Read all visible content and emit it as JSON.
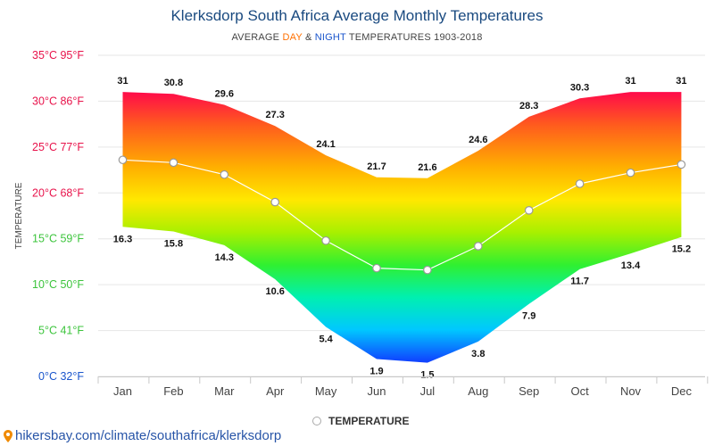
{
  "title": "Klerksdorp South Africa Average Monthly Temperatures",
  "subtitle": {
    "prefix": "AVERAGE ",
    "day": "DAY",
    "amp": " & ",
    "night": "NIGHT",
    "suffix": " TEMPERATURES 1903-2018"
  },
  "legend_label": "TEMPERATURE",
  "footer_url": "hikersbay.com/climate/southafrica/klerksdorp",
  "chart_data": {
    "type": "area",
    "ylabel": "TEMPERATURE",
    "ylim": [
      0,
      35
    ],
    "yticks": [
      {
        "value": 35,
        "label": "35°C 95°F",
        "color": "#e8134b"
      },
      {
        "value": 30,
        "label": "30°C 86°F",
        "color": "#e8134b"
      },
      {
        "value": 25,
        "label": "25°C 77°F",
        "color": "#e8134b"
      },
      {
        "value": 20,
        "label": "20°C 68°F",
        "color": "#e8134b"
      },
      {
        "value": 15,
        "label": "15°C 59°F",
        "color": "#3cc43c"
      },
      {
        "value": 10,
        "label": "10°C 50°F",
        "color": "#3cc43c"
      },
      {
        "value": 5,
        "label": "5°C 41°F",
        "color": "#3cc43c"
      },
      {
        "value": 0,
        "label": "0°C 32°F",
        "color": "#1a55cc"
      }
    ],
    "categories": [
      "Jan",
      "Feb",
      "Mar",
      "Apr",
      "May",
      "Jun",
      "Jul",
      "Aug",
      "Sep",
      "Oct",
      "Nov",
      "Dec"
    ],
    "series": [
      {
        "values": [
          31,
          30.8,
          29.6,
          27.3,
          24.1,
          21.7,
          21.6,
          24.6,
          28.3,
          30.3,
          31,
          31
        ]
      },
      {
        "values": [
          16.3,
          15.8,
          14.3,
          10.6,
          5.4,
          1.9,
          1.5,
          3.8,
          7.9,
          11.7,
          13.4,
          15.2
        ]
      },
      {
        "name": "TEMPERATURE",
        "values": [
          23.6,
          23.3,
          22.0,
          19.0,
          14.8,
          11.8,
          11.6,
          14.2,
          18.1,
          21.0,
          22.2,
          23.1
        ]
      }
    ],
    "grid": true,
    "legend_position": "bottom"
  }
}
